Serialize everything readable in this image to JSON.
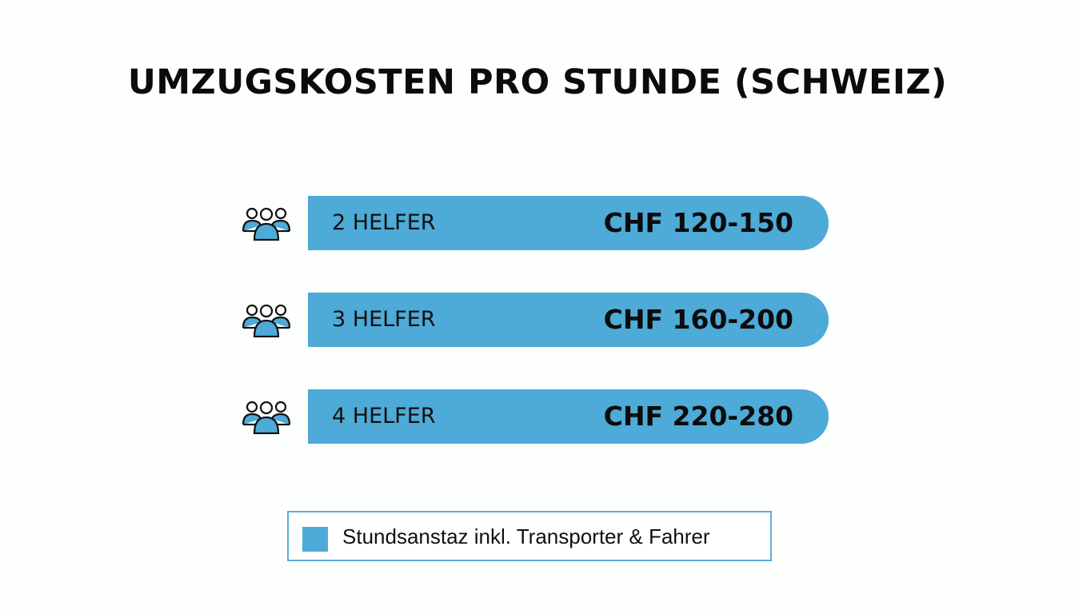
{
  "chart_data": {
    "type": "bar",
    "title": "UMZUGSKOSTEN PRO STUNDE (SCHWEIZ)",
    "categories": [
      "2 HELFER",
      "3 HELFER",
      "4 HELFER"
    ],
    "series": [
      {
        "name": "Stundsanstaz inkl. Transporter & Fahrer",
        "ranges": [
          [
            120,
            150
          ],
          [
            160,
            200
          ],
          [
            220,
            280
          ]
        ],
        "labels": [
          "CHF 120-150",
          "CHF 160-200",
          "CHF 220-280"
        ]
      }
    ],
    "icon": "people-group-icon",
    "legend": "bottom-center",
    "colors": {
      "bar": "#4eaad7",
      "text": "#111111"
    }
  }
}
